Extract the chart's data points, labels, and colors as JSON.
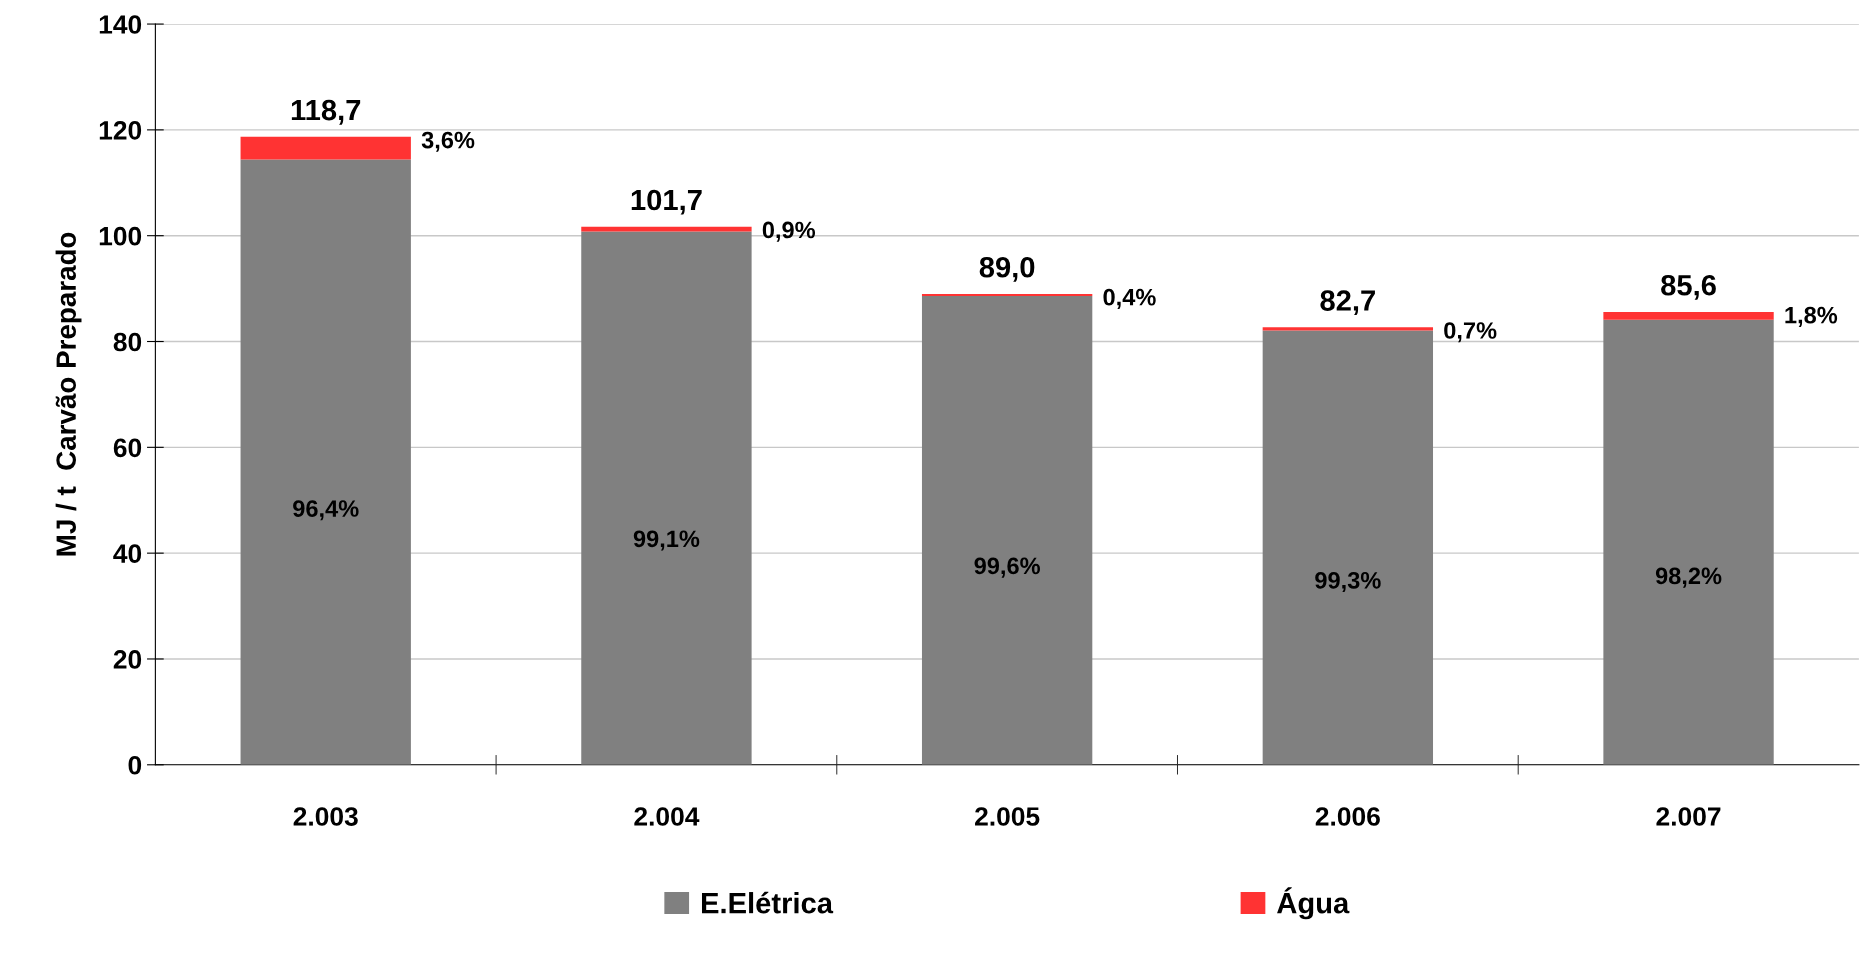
{
  "chart_data": {
    "type": "bar",
    "stacked": true,
    "ylabel": "MJ / t  Carvão Preparado",
    "categories": [
      "2.003",
      "2.004",
      "2.005",
      "2.006",
      "2.007"
    ],
    "series": [
      {
        "name": "E.Elétrica",
        "color": "#808080",
        "values": [
          114.4,
          100.8,
          88.6,
          82.1,
          84.1
        ]
      },
      {
        "name": "Água",
        "color": "#ff3333",
        "values": [
          4.3,
          0.9,
          0.4,
          0.6,
          1.5
        ]
      }
    ],
    "totals": [
      "118,7",
      "101,7",
      "89,0",
      "82,7",
      "85,6"
    ],
    "annotations": [
      "96,4%",
      "99,1%",
      "99,6%",
      "99,3%",
      "98,2%",
      "3,6%",
      "0,9%",
      "0,4%",
      "0,7%",
      "1,8%"
    ],
    "ylim": [
      0,
      140
    ],
    "yticks": [
      0,
      20,
      40,
      60,
      80,
      100,
      120,
      140
    ],
    "grid": "y",
    "legend": "bottom"
  }
}
